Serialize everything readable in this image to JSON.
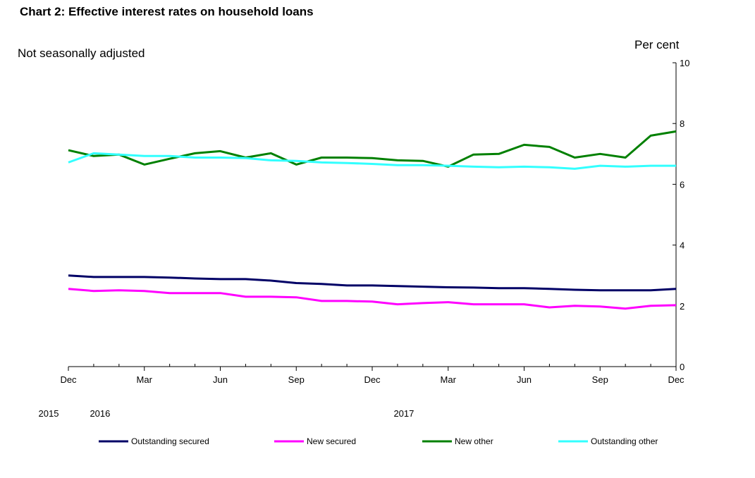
{
  "header": {
    "title": "Chart 2: Effective interest rates on household loans",
    "subtitle": "Not seasonally adjusted",
    "unit": "Per cent"
  },
  "chart_data": {
    "type": "line",
    "title": "Chart 2: Effective interest rates on household loans",
    "subtitle": "Not seasonally adjusted",
    "ylabel": "Per cent",
    "ylim": [
      0,
      10
    ],
    "yticks": [
      0,
      2,
      4,
      6,
      8,
      10
    ],
    "y_axis_position": "right",
    "grid": false,
    "legend_position": "bottom",
    "x": [
      "Dec 2015",
      "Jan 2016",
      "Feb 2016",
      "Mar 2016",
      "Apr 2016",
      "May 2016",
      "Jun 2016",
      "Jul 2016",
      "Aug 2016",
      "Sep 2016",
      "Oct 2016",
      "Nov 2016",
      "Dec 2016",
      "Jan 2017",
      "Feb 2017",
      "Mar 2017",
      "Apr 2017",
      "May 2017",
      "Jun 2017",
      "Jul 2017",
      "Aug 2017",
      "Sep 2017",
      "Oct 2017",
      "Nov 2017",
      "Dec 2017"
    ],
    "x_tick_labels": [
      {
        "index": 0,
        "label": "Dec"
      },
      {
        "index": 3,
        "label": "Mar"
      },
      {
        "index": 6,
        "label": "Jun"
      },
      {
        "index": 9,
        "label": "Sep"
      },
      {
        "index": 12,
        "label": "Dec"
      },
      {
        "index": 15,
        "label": "Mar"
      },
      {
        "index": 18,
        "label": "Jun"
      },
      {
        "index": 21,
        "label": "Sep"
      },
      {
        "index": 24,
        "label": "Dec"
      }
    ],
    "year_labels": [
      {
        "index": 0,
        "label": "2015"
      },
      {
        "index": 1,
        "label": "2016"
      },
      {
        "index": 13,
        "label": "2017"
      }
    ],
    "series": [
      {
        "name": "Outstanding secured",
        "color": "#000066",
        "values": [
          3.0,
          2.95,
          2.95,
          2.95,
          2.93,
          2.9,
          2.88,
          2.88,
          2.83,
          2.75,
          2.72,
          2.67,
          2.67,
          2.65,
          2.63,
          2.61,
          2.6,
          2.58,
          2.58,
          2.56,
          2.53,
          2.51,
          2.51,
          2.51,
          2.56
        ]
      },
      {
        "name": "New secured",
        "color": "#ff00ff",
        "values": [
          2.56,
          2.49,
          2.51,
          2.49,
          2.42,
          2.42,
          2.42,
          2.3,
          2.3,
          2.28,
          2.16,
          2.16,
          2.14,
          2.05,
          2.09,
          2.12,
          2.05,
          2.05,
          2.05,
          1.95,
          2.0,
          1.98,
          1.91,
          2.0,
          2.02
        ]
      },
      {
        "name": "New other",
        "color": "#008000",
        "values": [
          7.12,
          6.93,
          6.98,
          6.65,
          6.84,
          7.02,
          7.09,
          6.88,
          7.02,
          6.65,
          6.88,
          6.88,
          6.86,
          6.79,
          6.77,
          6.58,
          6.98,
          7.0,
          7.3,
          7.23,
          6.88,
          7.0,
          6.88,
          7.6,
          7.74
        ]
      },
      {
        "name": "Outstanding other",
        "color": "#33ffff",
        "values": [
          6.72,
          7.02,
          6.98,
          6.93,
          6.93,
          6.88,
          6.88,
          6.86,
          6.79,
          6.77,
          6.72,
          6.7,
          6.67,
          6.63,
          6.63,
          6.61,
          6.58,
          6.56,
          6.58,
          6.56,
          6.51,
          6.61,
          6.58,
          6.61,
          6.61
        ]
      }
    ]
  }
}
